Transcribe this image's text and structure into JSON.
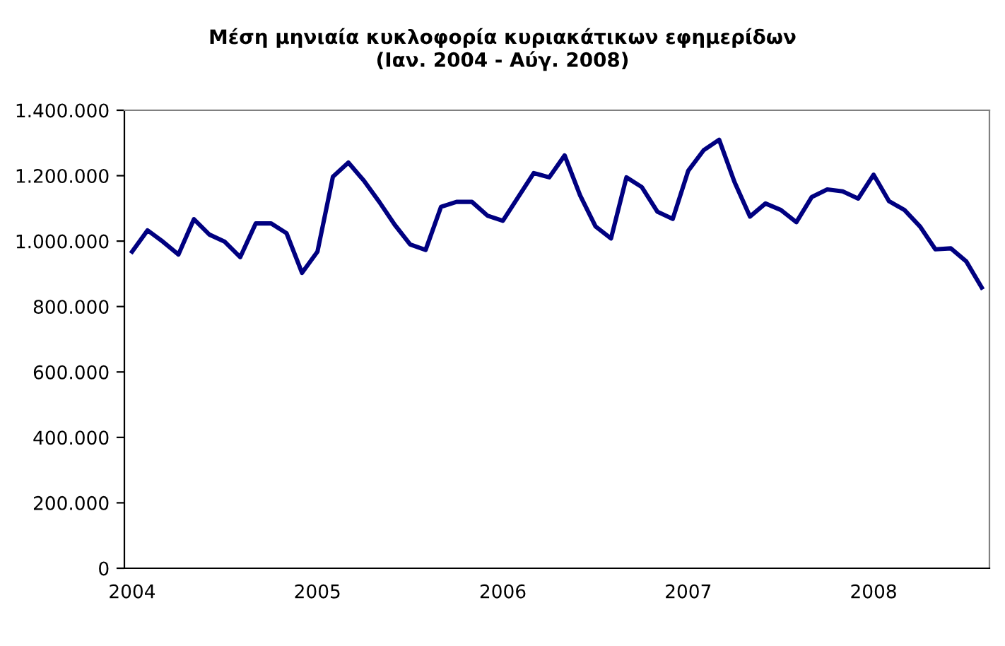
{
  "chart_data": {
    "type": "line",
    "title": "Μέση μηνιαία κυκλοφορία κυριακάτικων εφημερίδων\n(Ιαν. 2004 - Αύγ. 2008)",
    "categories": [
      "2004",
      null,
      null,
      null,
      null,
      null,
      null,
      null,
      null,
      null,
      null,
      null,
      "2005",
      null,
      null,
      null,
      null,
      null,
      null,
      null,
      null,
      null,
      null,
      null,
      "2006",
      null,
      null,
      null,
      null,
      null,
      null,
      null,
      null,
      null,
      null,
      null,
      "2007",
      null,
      null,
      null,
      null,
      null,
      null,
      null,
      null,
      null,
      null,
      null,
      "2008",
      null,
      null,
      null,
      null,
      null,
      null,
      null
    ],
    "series": [
      {
        "color": "#000080",
        "values": [
          968000,
          1033000,
          998000,
          959000,
          1067000,
          1020000,
          998000,
          951000,
          1054000,
          1054000,
          1024000,
          903000,
          968000,
          1197000,
          1240000,
          1185000,
          1120000,
          1050000,
          990000,
          973000,
          1105000,
          1120000,
          1120000,
          1078000,
          1062000,
          1135000,
          1208000,
          1195000,
          1262000,
          1140000,
          1045000,
          1008000,
          1195000,
          1165000,
          1090000,
          1068000,
          1215000,
          1278000,
          1310000,
          1180000,
          1075000,
          1115000,
          1095000,
          1058000,
          1135000,
          1158000,
          1152000,
          1130000,
          1203000,
          1122000,
          1095000,
          1045000,
          975000,
          978000,
          938000,
          858000
        ]
      }
    ],
    "ylim": [
      0,
      1400000
    ],
    "yticks": [
      0,
      {
        "value": 200000,
        "label": "200.000"
      },
      {
        "value": 400000,
        "label": "400.000"
      },
      {
        "value": 600000,
        "label": "600.000"
      },
      {
        "value": 800000,
        "label": "800.000"
      },
      {
        "value": 1000000,
        "label": "1.000.000"
      },
      {
        "value": 1200000,
        "label": "1.200.000"
      },
      {
        "value": 1400000,
        "label": "1.400.000"
      }
    ],
    "grid": false,
    "legend": false,
    "marker": "none",
    "line_style": "solid"
  }
}
